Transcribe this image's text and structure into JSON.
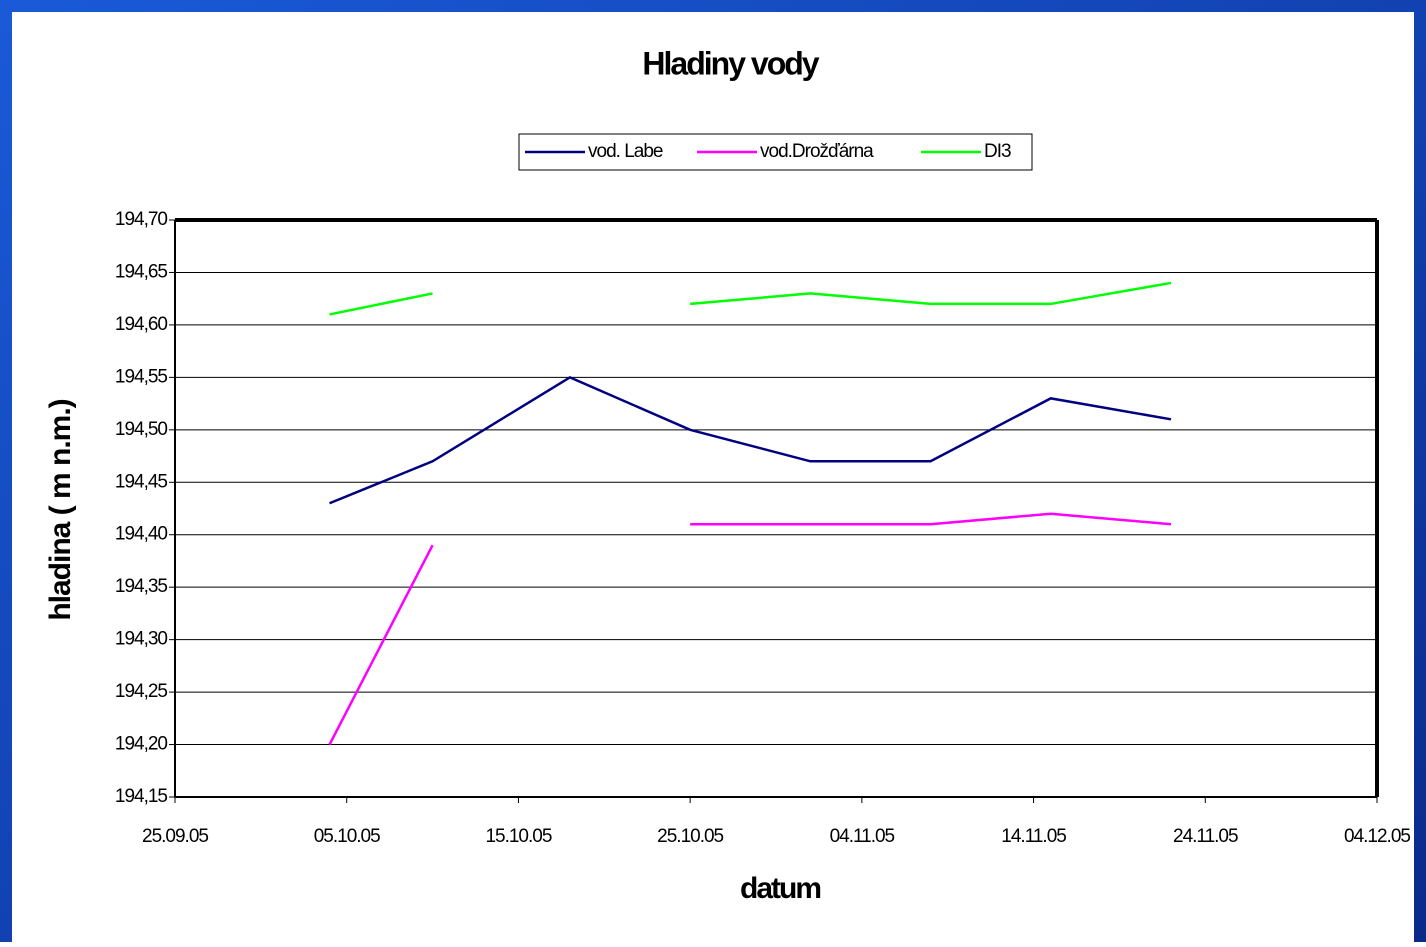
{
  "chart_data": {
    "type": "line",
    "title": "Hladiny vody",
    "xlabel": "datum",
    "ylabel": "hladina ( m n.m.)",
    "x": [
      "2005-10-04",
      "2005-10-10",
      "2005-10-18",
      "2005-10-25",
      "2005-11-01",
      "2005-11-08",
      "2005-11-15",
      "2005-11-22"
    ],
    "series": [
      {
        "name": "vod. Labe",
        "color": "#000080",
        "values": [
          194.43,
          194.47,
          194.55,
          194.5,
          194.47,
          194.47,
          194.53,
          194.51
        ]
      },
      {
        "name": "vod.Drožďárna",
        "color": "#ff00ff",
        "values": [
          194.2,
          194.39,
          null,
          194.41,
          194.41,
          194.41,
          194.42,
          194.41
        ]
      },
      {
        "name": "DI3",
        "color": "#00ff00",
        "values": [
          194.61,
          194.63,
          null,
          194.62,
          194.63,
          194.62,
          194.62,
          194.64
        ]
      }
    ],
    "xlim": [
      "2005-09-25",
      "2005-12-04"
    ],
    "xticks": [
      {
        "value": "2005-09-25",
        "label": "25.09.05"
      },
      {
        "value": "2005-10-05",
        "label": "05.10.05"
      },
      {
        "value": "2005-10-15",
        "label": "15.10.05"
      },
      {
        "value": "2005-10-25",
        "label": "25.10.05"
      },
      {
        "value": "2005-11-04",
        "label": "04.11.05"
      },
      {
        "value": "2005-11-14",
        "label": "14.11.05"
      },
      {
        "value": "2005-11-24",
        "label": "24.11.05"
      },
      {
        "value": "2005-12-04",
        "label": "04.12.05"
      }
    ],
    "ylim": [
      194.15,
      194.7
    ],
    "yticks": [
      {
        "value": 194.15,
        "label": "194,15"
      },
      {
        "value": 194.2,
        "label": "194,20"
      },
      {
        "value": 194.25,
        "label": "194,25"
      },
      {
        "value": 194.3,
        "label": "194,30"
      },
      {
        "value": 194.35,
        "label": "194,35"
      },
      {
        "value": 194.4,
        "label": "194,40"
      },
      {
        "value": 194.45,
        "label": "194,45"
      },
      {
        "value": 194.5,
        "label": "194,50"
      },
      {
        "value": 194.55,
        "label": "194,55"
      },
      {
        "value": 194.6,
        "label": "194,60"
      },
      {
        "value": 194.65,
        "label": "194,65"
      },
      {
        "value": 194.7,
        "label": "194,70"
      }
    ],
    "grid": true,
    "legend": "top"
  }
}
